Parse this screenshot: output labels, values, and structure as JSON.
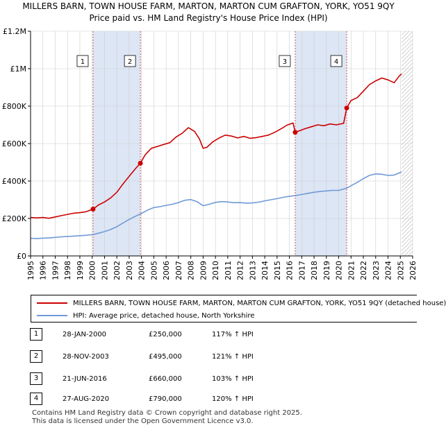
{
  "title": {
    "line1": "MILLERS BARN, TOWN HOUSE FARM, MARTON, MARTON CUM GRAFTON, YORK, YO51 9QY",
    "line2": "Price paid vs. HM Land Registry's House Price Index (HPI)"
  },
  "colors": {
    "property": "#cc0000",
    "hpi": "#6f9ad6",
    "highlight": "#dde6f5",
    "marker_line": "#d45555",
    "grid": "#cccccc"
  },
  "chart_data": {
    "type": "line",
    "xlim": [
      1995,
      2026
    ],
    "ylim": [
      0,
      1200000
    ],
    "y_ticks": [
      {
        "value": 0,
        "label": "£0"
      },
      {
        "value": 200000,
        "label": "£200K"
      },
      {
        "value": 400000,
        "label": "£400K"
      },
      {
        "value": 600000,
        "label": "£600K"
      },
      {
        "value": 800000,
        "label": "£800K"
      },
      {
        "value": 1000000,
        "label": "£1M"
      },
      {
        "value": 1200000,
        "label": "£1.2M"
      }
    ],
    "x_ticks": [
      "1995",
      "1996",
      "1997",
      "1998",
      "1999",
      "2000",
      "2001",
      "2002",
      "2003",
      "2004",
      "2005",
      "2006",
      "2007",
      "2008",
      "2009",
      "2010",
      "2011",
      "2012",
      "2013",
      "2014",
      "2015",
      "2016",
      "2017",
      "2018",
      "2019",
      "2020",
      "2021",
      "2022",
      "2023",
      "2024",
      "2025",
      "2026"
    ],
    "highlight_ranges": [
      [
        2000.07,
        2003.91
      ],
      [
        2016.47,
        2020.65
      ]
    ],
    "future_start": 2025.1,
    "series": [
      {
        "name": "MILLERS BARN, TOWN HOUSE FARM, MARTON, MARTON CUM GRAFTON, YORK, YO51 9QY (detached house)",
        "color": "#cc0000",
        "points": [
          [
            1995.0,
            205000
          ],
          [
            1995.5,
            203000
          ],
          [
            1996.0,
            205000
          ],
          [
            1996.5,
            201000
          ],
          [
            1997.0,
            208000
          ],
          [
            1997.5,
            215000
          ],
          [
            1998.0,
            222000
          ],
          [
            1998.5,
            228000
          ],
          [
            1999.0,
            231000
          ],
          [
            1999.5,
            236000
          ],
          [
            2000.07,
            250000
          ],
          [
            2000.5,
            272000
          ],
          [
            2001.0,
            288000
          ],
          [
            2001.5,
            310000
          ],
          [
            2002.0,
            340000
          ],
          [
            2002.5,
            385000
          ],
          [
            2003.0,
            425000
          ],
          [
            2003.5,
            465000
          ],
          [
            2003.91,
            495000
          ],
          [
            2004.3,
            540000
          ],
          [
            2004.8,
            575000
          ],
          [
            2005.3,
            585000
          ],
          [
            2005.8,
            595000
          ],
          [
            2006.3,
            605000
          ],
          [
            2006.8,
            635000
          ],
          [
            2007.3,
            655000
          ],
          [
            2007.8,
            685000
          ],
          [
            2008.3,
            665000
          ],
          [
            2008.7,
            625000
          ],
          [
            2009.0,
            575000
          ],
          [
            2009.3,
            580000
          ],
          [
            2009.8,
            610000
          ],
          [
            2010.3,
            630000
          ],
          [
            2010.8,
            645000
          ],
          [
            2011.3,
            640000
          ],
          [
            2011.8,
            630000
          ],
          [
            2012.3,
            638000
          ],
          [
            2012.8,
            628000
          ],
          [
            2013.3,
            632000
          ],
          [
            2013.8,
            638000
          ],
          [
            2014.3,
            645000
          ],
          [
            2014.8,
            660000
          ],
          [
            2015.3,
            678000
          ],
          [
            2015.8,
            698000
          ],
          [
            2016.3,
            710000
          ],
          [
            2016.47,
            660000
          ],
          [
            2016.8,
            668000
          ],
          [
            2017.3,
            680000
          ],
          [
            2017.8,
            690000
          ],
          [
            2018.3,
            700000
          ],
          [
            2018.8,
            695000
          ],
          [
            2019.3,
            705000
          ],
          [
            2019.8,
            700000
          ],
          [
            2020.4,
            708000
          ],
          [
            2020.65,
            790000
          ],
          [
            2021.0,
            830000
          ],
          [
            2021.5,
            845000
          ],
          [
            2022.0,
            880000
          ],
          [
            2022.5,
            915000
          ],
          [
            2023.0,
            935000
          ],
          [
            2023.5,
            950000
          ],
          [
            2024.0,
            940000
          ],
          [
            2024.5,
            925000
          ],
          [
            2024.9,
            960000
          ],
          [
            2025.1,
            972000
          ]
        ]
      },
      {
        "name": "HPI: Average price, detached house, North Yorkshire",
        "color": "#6f9ad6",
        "points": [
          [
            1995.0,
            94000
          ],
          [
            1995.5,
            93000
          ],
          [
            1996.0,
            95000
          ],
          [
            1996.5,
            96000
          ],
          [
            1997.0,
            99000
          ],
          [
            1997.5,
            102000
          ],
          [
            1998.0,
            104000
          ],
          [
            1998.5,
            106000
          ],
          [
            1999.0,
            108000
          ],
          [
            1999.5,
            110000
          ],
          [
            2000.07,
            114000
          ],
          [
            2000.5,
            121000
          ],
          [
            2001.0,
            130000
          ],
          [
            2001.5,
            141000
          ],
          [
            2002.0,
            156000
          ],
          [
            2002.5,
            176000
          ],
          [
            2003.0,
            195000
          ],
          [
            2003.5,
            212000
          ],
          [
            2003.91,
            224000
          ],
          [
            2004.5,
            245000
          ],
          [
            2005.0,
            258000
          ],
          [
            2005.5,
            263000
          ],
          [
            2006.0,
            270000
          ],
          [
            2006.5,
            276000
          ],
          [
            2007.0,
            285000
          ],
          [
            2007.5,
            297000
          ],
          [
            2008.0,
            301000
          ],
          [
            2008.5,
            290000
          ],
          [
            2009.0,
            268000
          ],
          [
            2009.5,
            276000
          ],
          [
            2010.0,
            286000
          ],
          [
            2010.5,
            290000
          ],
          [
            2011.0,
            288000
          ],
          [
            2011.5,
            284000
          ],
          [
            2012.0,
            285000
          ],
          [
            2012.5,
            282000
          ],
          [
            2013.0,
            283000
          ],
          [
            2013.5,
            287000
          ],
          [
            2014.0,
            294000
          ],
          [
            2014.5,
            300000
          ],
          [
            2015.0,
            306000
          ],
          [
            2015.5,
            313000
          ],
          [
            2016.0,
            318000
          ],
          [
            2016.47,
            322000
          ],
          [
            2017.0,
            328000
          ],
          [
            2017.5,
            334000
          ],
          [
            2018.0,
            340000
          ],
          [
            2018.5,
            344000
          ],
          [
            2019.0,
            347000
          ],
          [
            2019.5,
            350000
          ],
          [
            2020.0,
            350000
          ],
          [
            2020.65,
            362000
          ],
          [
            2021.0,
            375000
          ],
          [
            2021.5,
            393000
          ],
          [
            2022.0,
            413000
          ],
          [
            2022.5,
            430000
          ],
          [
            2023.0,
            438000
          ],
          [
            2023.5,
            436000
          ],
          [
            2024.0,
            430000
          ],
          [
            2024.5,
            432000
          ],
          [
            2025.1,
            448000
          ]
        ]
      }
    ],
    "sales": [
      {
        "num": "1",
        "x": 2000.07,
        "price": 250000,
        "date": "28-JAN-2000",
        "price_label": "£250,000",
        "hpi": "117% ↑ HPI"
      },
      {
        "num": "2",
        "x": 2003.91,
        "price": 495000,
        "date": "28-NOV-2003",
        "price_label": "£495,000",
        "hpi": "121% ↑ HPI"
      },
      {
        "num": "3",
        "x": 2016.47,
        "price": 660000,
        "date": "21-JUN-2016",
        "price_label": "£660,000",
        "hpi": "103% ↑ HPI"
      },
      {
        "num": "4",
        "x": 2020.65,
        "price": 790000,
        "date": "27-AUG-2020",
        "price_label": "£790,000",
        "hpi": "120% ↑ HPI"
      }
    ]
  },
  "legend": {
    "property_label": "MILLERS BARN, TOWN HOUSE FARM, MARTON, MARTON CUM GRAFTON, YORK, YO51 9QY (detached house)",
    "hpi_label": "HPI: Average price, detached house, North Yorkshire"
  },
  "footer": {
    "line1": "Contains HM Land Registry data © Crown copyright and database right 2025.",
    "line2": "This data is licensed under the Open Government Licence v3.0."
  }
}
